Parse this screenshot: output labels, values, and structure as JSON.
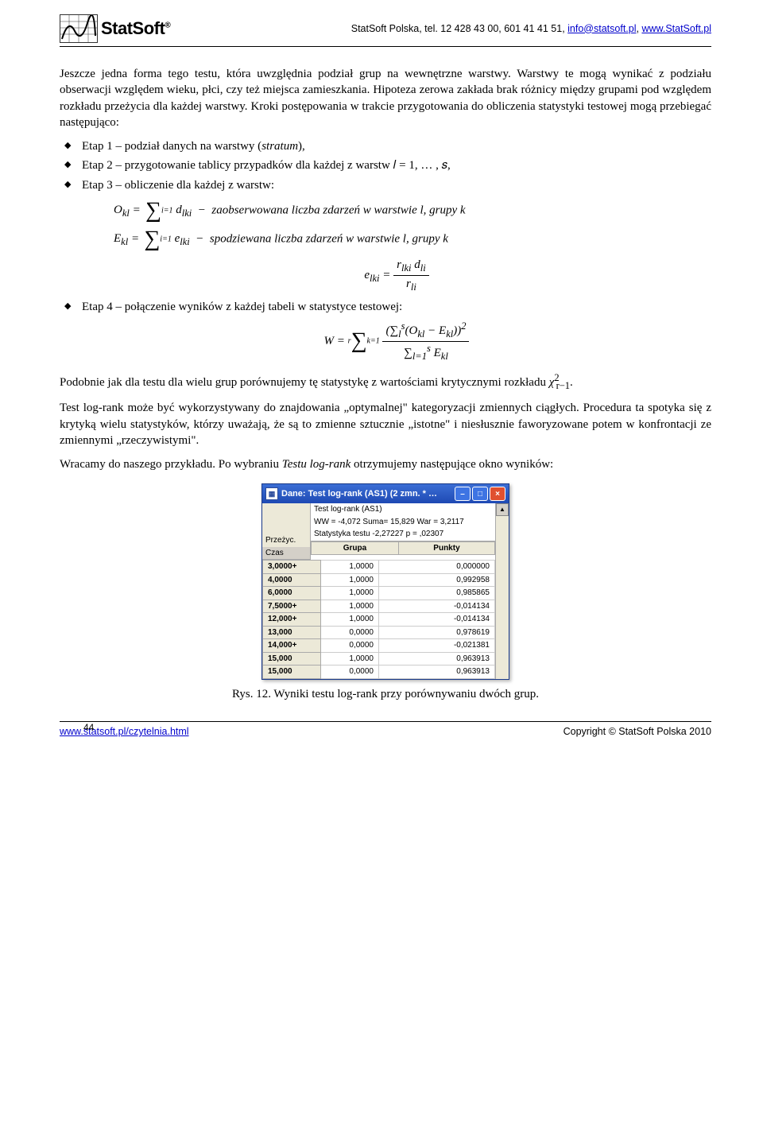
{
  "header": {
    "brand": "StatSoft",
    "contact_prefix": "StatSoft Polska, tel. 12 428 43 00, 601 41 41 51, ",
    "email": "info@statsoft.pl",
    "site": "www.StatSoft.pl"
  },
  "para1": "Jeszcze jedna forma tego testu, która uwzględnia podział grup na wewnętrzne warstwy. Warstwy te mogą wynikać z podziału obserwacji względem wieku, płci, czy też miejsca zamieszkania. Hipoteza zerowa zakłada brak różnicy między grupami pod względem rozkładu przeżycia dla każdej warstwy. Kroki postępowania w trakcie przygotowania do obliczenia statystyki testowej mogą przebiegać następująco:",
  "bullet1": "Etap 1 – podział danych na warstwy (",
  "bullet1_ital": "stratum",
  "bullet1_end": "),",
  "bullet2": "Etap 2 – przygotowanie tablicy przypadków dla każdej z warstw 𝑙 = 1, … , 𝑠,",
  "bullet3": "Etap 3 – obliczenie dla każdej z warstw:",
  "formula_O": "𝑂ₖₗ = ∑ 𝑑ₗₖᵢ  −  𝑧𝑎𝑜𝑏𝑠𝑒𝑟𝑤𝑜𝑤𝑎𝑛𝑎 𝑙𝑖𝑐𝑧𝑏𝑎 𝑧𝑑𝑎𝑟𝑧𝑒ń 𝑤 𝑤𝑎𝑟𝑠𝑡𝑤𝑖𝑒 𝑙, 𝑔𝑟𝑢𝑝𝑦 𝑘",
  "formula_E": "𝐸ₖₗ = ∑ 𝑒ₗₖᵢ  −  𝑠𝑝𝑜𝑑𝑧𝑖𝑒𝑤𝑎𝑛𝑎 𝑙𝑖𝑐𝑧𝑏𝑎 𝑧𝑑𝑎𝑟𝑧𝑒ń 𝑤 𝑤𝑎𝑟𝑠𝑡𝑤𝑖𝑒 𝑙, 𝑔𝑟𝑢𝑝𝑦 𝑘",
  "bullet4": "Etap 4 – połączenie wyników z każdej tabeli w statystyce testowej:",
  "para2_a": "Podobnie jak dla testu dla wielu grup porównujemy tę statystykę z wartościami krytycznymi rozkładu ",
  "para2_b": ".",
  "para3": "Test log-rank może być wykorzystywany do znajdowania „optymalnej\" kategoryzacji zmiennych ciągłych. Procedura ta spotyka się z krytyką wielu statystyków, którzy uważają, że są to zmienne sztucznie „istotne\" i niesłusznie faworyzowane potem w konfrontacji ze zmiennymi „rzeczywistymi\".",
  "para4_a": "Wracamy do naszego przykładu. Po wybraniu ",
  "para4_ital": "Testu log-rank",
  "para4_b": " otrzymujemy następujące okno wyników:",
  "window": {
    "title": "Dane: Test log-rank (AS1) (2 zmn. * …",
    "info1": "Test log-rank (AS1)",
    "info2": "WW = -4,072 Suma= 15,829 War = 3,2117",
    "info3": "Statystyka testu -2,27227 p = ,02307",
    "left_label1": "Przeżyc.",
    "left_label2": "Czas",
    "col_grupa": "Grupa",
    "col_punkty": "Punkty",
    "rows": [
      {
        "czas": "3,0000+",
        "grupa": "1,0000",
        "punkty": "0,000000"
      },
      {
        "czas": "4,0000",
        "grupa": "1,0000",
        "punkty": "0,992958"
      },
      {
        "czas": "6,0000",
        "grupa": "1,0000",
        "punkty": "0,985865"
      },
      {
        "czas": "7,5000+",
        "grupa": "1,0000",
        "punkty": "-0,014134"
      },
      {
        "czas": "12,000+",
        "grupa": "1,0000",
        "punkty": "-0,014134"
      },
      {
        "czas": "13,000",
        "grupa": "0,0000",
        "punkty": "0,978619"
      },
      {
        "czas": "14,000+",
        "grupa": "0,0000",
        "punkty": "-0,021381"
      },
      {
        "czas": "15,000",
        "grupa": "1,0000",
        "punkty": "0,963913"
      },
      {
        "czas": "15,000",
        "grupa": "0,0000",
        "punkty": "0,963913"
      }
    ]
  },
  "caption": "Rys. 12. Wyniki testu log-rank przy porównywaniu dwóch grup.",
  "footer": {
    "page": "44",
    "left": "www.statsoft.pl/czytelnia.html",
    "right": "Copyright © StatSoft Polska 2010"
  },
  "colors": {
    "titlebar_top": "#3b6ed5",
    "titlebar_bottom": "#1e49b3",
    "close_btn": "#e05030",
    "panel_bg": "#ece9d8",
    "link": "#0000cc"
  }
}
